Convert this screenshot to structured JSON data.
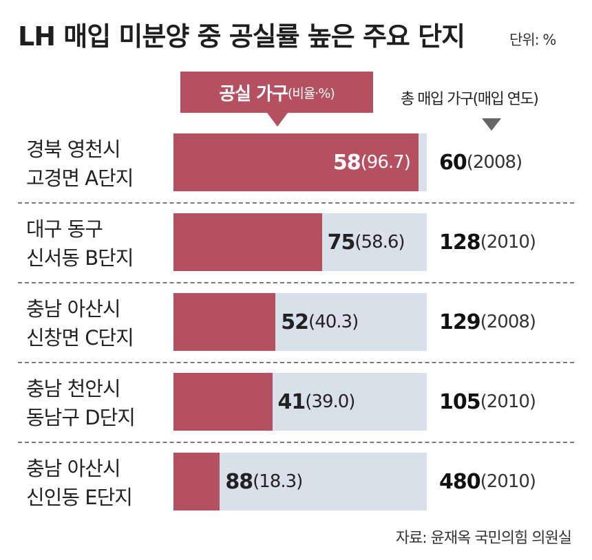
{
  "title": "LH 매입 미분양 중 공실률 높은 주요 단지",
  "unit": "단위: %",
  "header": {
    "vacant_main": "공실 가구",
    "vacant_sub": "(비율·%)",
    "total": "총 매입 가구(매입 연도)"
  },
  "source": "자료: 윤재옥 국민의힘 의원실",
  "chart_data": {
    "type": "bar",
    "orientation": "horizontal",
    "title": "LH 매입 미분양 중 공실률 높은 주요 단지",
    "categories": [
      "경북 영천시 고경면 A단지",
      "대구 동구 신서동 B단지",
      "충남 아산시 신창면 C단지",
      "충남 천안시 동남구 D단지",
      "충남 아산시 신인동 E단지"
    ],
    "series": [
      {
        "name": "공실 가구",
        "values": [
          58,
          75,
          52,
          41,
          88
        ]
      },
      {
        "name": "비율·%",
        "values": [
          96.7,
          58.6,
          40.3,
          39.0,
          18.3
        ]
      }
    ],
    "ylim": [
      0,
      100
    ],
    "rows": [
      {
        "line1": "경북 영천시",
        "line2": "고경면 A단지",
        "vacant": "58",
        "ratio": 96.7,
        "ratio_text": "(96.7)",
        "total": "60",
        "year": "(2008)",
        "inside": true
      },
      {
        "line1": "대구 동구",
        "line2": "신서동 B단지",
        "vacant": "75",
        "ratio": 58.6,
        "ratio_text": "(58.6)",
        "total": "128",
        "year": "(2010)",
        "inside": false
      },
      {
        "line1": "충남 아산시",
        "line2": "신창면 C단지",
        "vacant": "52",
        "ratio": 40.3,
        "ratio_text": "(40.3)",
        "total": "129",
        "year": "(2008)",
        "inside": false
      },
      {
        "line1": "충남 천안시",
        "line2": "동남구 D단지",
        "vacant": "41",
        "ratio": 39.0,
        "ratio_text": "(39.0)",
        "total": "105",
        "year": "(2010)",
        "inside": false
      },
      {
        "line1": "충남 아산시",
        "line2": "신인동 E단지",
        "vacant": "88",
        "ratio": 18.3,
        "ratio_text": "(18.3)",
        "total": "480",
        "year": "(2010)",
        "inside": false
      }
    ],
    "colors": {
      "vacant": "#b45060",
      "remainder": "#d8e0ea"
    }
  }
}
